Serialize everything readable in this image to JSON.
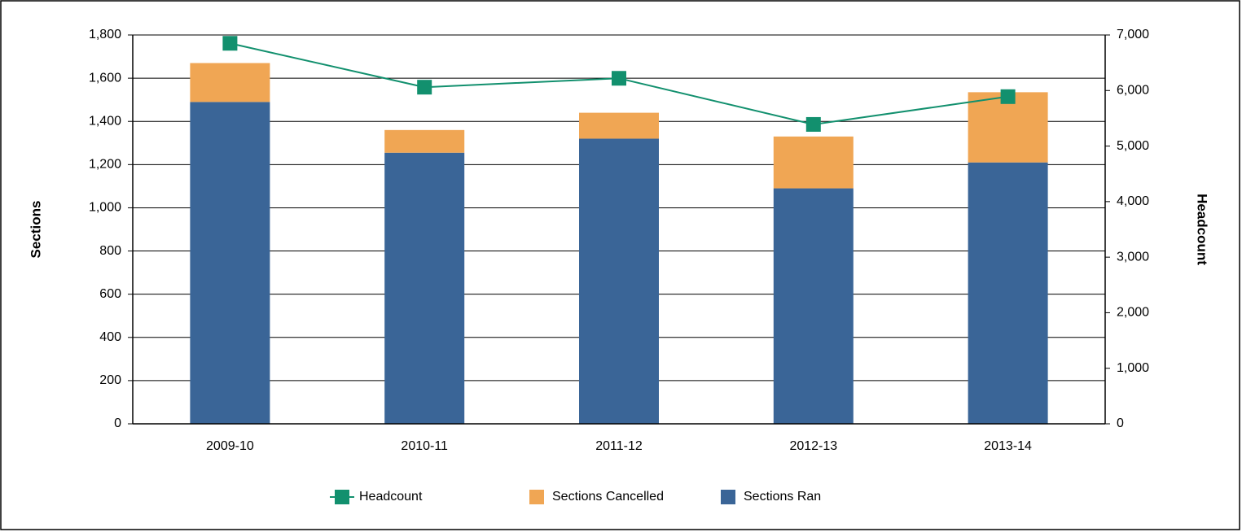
{
  "chart_data": {
    "type": "bar",
    "stacked": true,
    "y_label": "Sections",
    "y2_label": "Headcount",
    "categories": [
      "2009-10",
      "2010-11",
      "2011-12",
      "2012-13",
      "2013-14"
    ],
    "series": [
      {
        "name": "Sections Ran",
        "color": "#3a6597",
        "type": "bar",
        "values": [
          1490,
          1255,
          1320,
          1090,
          1210
        ]
      },
      {
        "name": "Sections Cancelled",
        "color": "#f0a654",
        "type": "bar",
        "values": [
          180,
          105,
          120,
          240,
          325
        ]
      },
      {
        "name": "Headcount",
        "color": "#12906e",
        "type": "line",
        "axis": "y2",
        "values": [
          6850,
          6060,
          6220,
          5390,
          5890
        ]
      }
    ],
    "ylim": [
      0,
      1800
    ],
    "yticks": [
      0,
      200,
      400,
      600,
      800,
      {
        "value": 1000,
        "label": "1,000"
      },
      {
        "value": 1200,
        "label": "1,200"
      },
      {
        "value": 1400,
        "label": "1,400"
      },
      {
        "value": 1600,
        "label": "1,600"
      },
      {
        "value": 1800,
        "label": "1,800"
      }
    ],
    "y2lim": [
      0,
      7000
    ],
    "y2ticks": [
      0,
      {
        "value": 1000,
        "label": "1,000"
      },
      {
        "value": 2000,
        "label": "2,000"
      },
      {
        "value": 3000,
        "label": "3,000"
      },
      {
        "value": 4000,
        "label": "4,000"
      },
      {
        "value": 5000,
        "label": "5,000"
      },
      {
        "value": 6000,
        "label": "6,000"
      },
      {
        "value": 7000,
        "label": "7,000"
      }
    ],
    "grid": true,
    "legend": "bottom"
  }
}
